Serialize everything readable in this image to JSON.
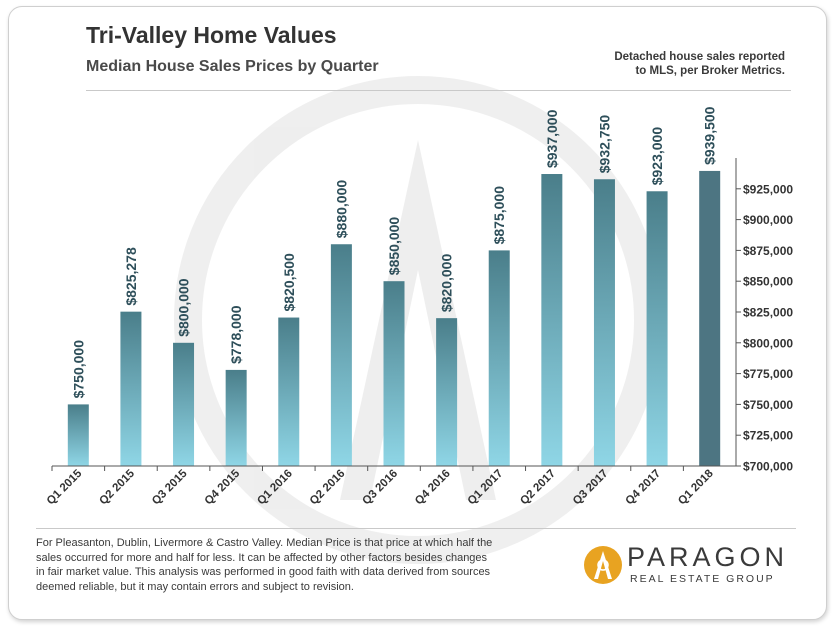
{
  "header": {
    "title": "Tri-Valley Home Values",
    "subtitle": "Median House Sales Prices by Quarter",
    "note_lines": [
      "Detached house sales reported",
      "to MLS, per Broker Metrics."
    ]
  },
  "footer": {
    "lines": [
      "For Pleasanton, Dublin, Livermore & Castro Valley. Median Price is that price at which half the",
      "sales occurred for more and half for less. It can be affected by other factors besides changes",
      "in fair market value. This analysis was performed in good faith with data derived from sources",
      "deemed reliable, but it may contain errors and subject to revision."
    ]
  },
  "brand": {
    "name": "PARAGON",
    "tagline": "REAL ESTATE GROUP",
    "logo_icon": "paragon-arch-logo-icon",
    "logo_color": "#e8a321"
  },
  "colors": {
    "bar_top": "#4a7e8a",
    "bar_bottom": "#8fd6e6",
    "last_bar": "#4d7582",
    "data_label": "#2e4f5a"
  },
  "chart_data": {
    "type": "bar",
    "categories": [
      "Q1 2015",
      "Q2 2015",
      "Q3 2015",
      "Q4 2015",
      "Q1 2016",
      "Q2 2016",
      "Q3 2016",
      "Q4 2016",
      "Q1 2017",
      "Q2 2017",
      "Q3 2017",
      "Q4 2017",
      "Q1 2018"
    ],
    "values": [
      750000,
      825278,
      800000,
      778000,
      820500,
      880000,
      850000,
      820000,
      875000,
      937000,
      932750,
      923000,
      939500
    ],
    "data_labels": [
      "$750,000",
      "$825,278",
      "$800,000",
      "$778,000",
      "$820,500",
      "$880,000",
      "$850,000",
      "$820,000",
      "$875,000",
      "$937,000",
      "$932,750",
      "$923,000",
      "$939,500"
    ],
    "ylim": [
      700000,
      950000
    ],
    "y_ticks": [
      700000,
      725000,
      750000,
      775000,
      800000,
      825000,
      850000,
      875000,
      900000,
      925000
    ],
    "y_tick_labels": [
      "$700,000",
      "$725,000",
      "$750,000",
      "$775,000",
      "$800,000",
      "$825,000",
      "$850,000",
      "$875,000",
      "$900,000",
      "$925,000"
    ],
    "y_axis_side": "right",
    "grid": false,
    "legend": "none"
  }
}
